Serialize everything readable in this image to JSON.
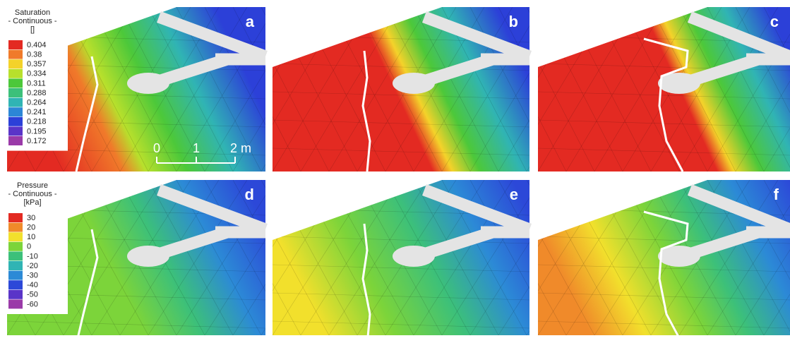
{
  "legends": [
    {
      "title": [
        "Saturation",
        "- Continuous -",
        "[]"
      ],
      "entries": [
        {
          "label": "0.404",
          "color": "#e32a22"
        },
        {
          "label": "0.38",
          "color": "#f07a2a"
        },
        {
          "label": "0.357",
          "color": "#f4d22a"
        },
        {
          "label": "0.334",
          "color": "#b8e02c"
        },
        {
          "label": "0.311",
          "color": "#4cc83a"
        },
        {
          "label": "0.288",
          "color": "#3cc07a"
        },
        {
          "label": "0.264",
          "color": "#30b4b4"
        },
        {
          "label": "0.241",
          "color": "#2c86d6"
        },
        {
          "label": "0.218",
          "color": "#2c40d8"
        },
        {
          "label": "0.195",
          "color": "#5a34c8"
        },
        {
          "label": "0.172",
          "color": "#9a3aa8"
        }
      ]
    },
    {
      "title": [
        "Pressure",
        "- Continuous -",
        "[kPa]"
      ],
      "entries": [
        {
          "label": "30",
          "color": "#e32a22"
        },
        {
          "label": "20",
          "color": "#f08a2a"
        },
        {
          "label": "10",
          "color": "#f2e02c"
        },
        {
          "label": "0",
          "color": "#7cd43a"
        },
        {
          "label": "-10",
          "color": "#3cc07a"
        },
        {
          "label": "-20",
          "color": "#30b4b4"
        },
        {
          "label": "-30",
          "color": "#2c8ad6"
        },
        {
          "label": "-40",
          "color": "#2c48d8"
        },
        {
          "label": "-50",
          "color": "#5a34c8"
        },
        {
          "label": "-60",
          "color": "#9a3aa8"
        }
      ]
    }
  ],
  "panels": [
    {
      "label": "a"
    },
    {
      "label": "b"
    },
    {
      "label": "c"
    },
    {
      "label": "d"
    },
    {
      "label": "e"
    },
    {
      "label": "f"
    }
  ],
  "scale_bar": {
    "ticks": [
      "0",
      "1",
      "2 m"
    ]
  }
}
